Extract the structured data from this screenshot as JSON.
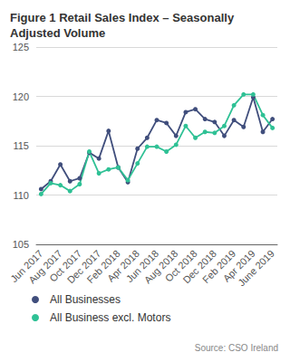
{
  "chart_data": {
    "type": "line",
    "title": "Figure 1 Retail Sales Index – Seasonally Adjusted Volume",
    "source": "Source: CSO Ireland",
    "categories": [
      "Jun 2017",
      null,
      "Aug 2017",
      null,
      "Oct 2017",
      null,
      "Dec 2017",
      null,
      "Feb 2018",
      null,
      "Apr 2018",
      null,
      "Jun 2018",
      null,
      "Aug 2018",
      null,
      "Oct 2018",
      null,
      "Dec 2018",
      null,
      "Feb 2019",
      null,
      "Apr 2019",
      null,
      "June 2019"
    ],
    "series": [
      {
        "name": "All Businesses",
        "color": "#404e7c",
        "marker": "circle",
        "line_style": "solid",
        "values": [
          110.6,
          111.4,
          113.1,
          111.4,
          111.7,
          114.3,
          113.7,
          116.5,
          112.8,
          111.3,
          114.7,
          115.8,
          117.6,
          117.3,
          116.0,
          118.4,
          118.7,
          117.7,
          117.4,
          116.0,
          117.6,
          116.9,
          119.9,
          116.4,
          117.7
        ]
      },
      {
        "name": "All Business excl. Motors",
        "color": "#2fc195",
        "marker": "circle",
        "line_style": "solid",
        "values": [
          110.1,
          111.2,
          111.0,
          110.4,
          111.1,
          114.4,
          112.2,
          112.6,
          112.8,
          111.5,
          113.2,
          114.9,
          114.9,
          114.4,
          115.1,
          117.0,
          115.8,
          116.4,
          116.3,
          117.0,
          119.1,
          120.2,
          120.2,
          118.1,
          116.8
        ]
      }
    ],
    "ylim": [
      105,
      125
    ],
    "yticks": [
      105,
      110,
      115,
      120,
      125
    ],
    "grid": true,
    "legend": "bottom"
  }
}
